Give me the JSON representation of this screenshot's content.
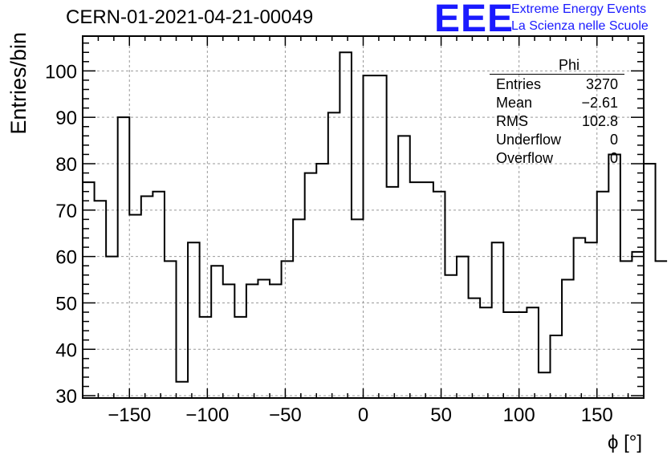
{
  "header": {
    "title": "CERN-01-2021-04-21-00049",
    "logo_text": "EEE",
    "logo_line1": "Extreme Energy Events",
    "logo_line2": "La Scienza nelle Scuole"
  },
  "stats_box": {
    "name": "Phi",
    "rows": [
      {
        "label": "Entries",
        "value": "3270"
      },
      {
        "label": "Mean",
        "value": "−2.61"
      },
      {
        "label": "RMS",
        "value": "102.8"
      },
      {
        "label": "Underflow",
        "value": "0"
      },
      {
        "label": "Overflow",
        "value": "0"
      }
    ]
  },
  "chart_data": {
    "type": "histogram",
    "title": "CERN-01-2021-04-21-00049",
    "xlabel": "ϕ [°]",
    "ylabel": "Entries/bin",
    "xlim": [
      -180,
      180
    ],
    "ylim": [
      29.5,
      107.5
    ],
    "bin_width": 7.5,
    "bin_edges_start": -180,
    "values": [
      76,
      72,
      60,
      90,
      69,
      73,
      74,
      59,
      33,
      63,
      47,
      58,
      54,
      47,
      54,
      55,
      54,
      59,
      68,
      78,
      80,
      91,
      104,
      68,
      99,
      99,
      75,
      86,
      76,
      76,
      74,
      56,
      60,
      51,
      49,
      63,
      48,
      48,
      49,
      35,
      43,
      55,
      64,
      63,
      74,
      82,
      59,
      61,
      80,
      59
    ],
    "xticks": [
      -150,
      -100,
      -50,
      0,
      50,
      100,
      150
    ],
    "xtick_labels": [
      "−150",
      "−100",
      "−50",
      "0",
      "50",
      "100",
      "150"
    ],
    "yticks": [
      30,
      40,
      50,
      60,
      70,
      80,
      90,
      100
    ],
    "ytick_labels": [
      "30",
      "40",
      "50",
      "60",
      "70",
      "80",
      "90",
      "100"
    ],
    "grid": true,
    "line_color": "#000000"
  }
}
